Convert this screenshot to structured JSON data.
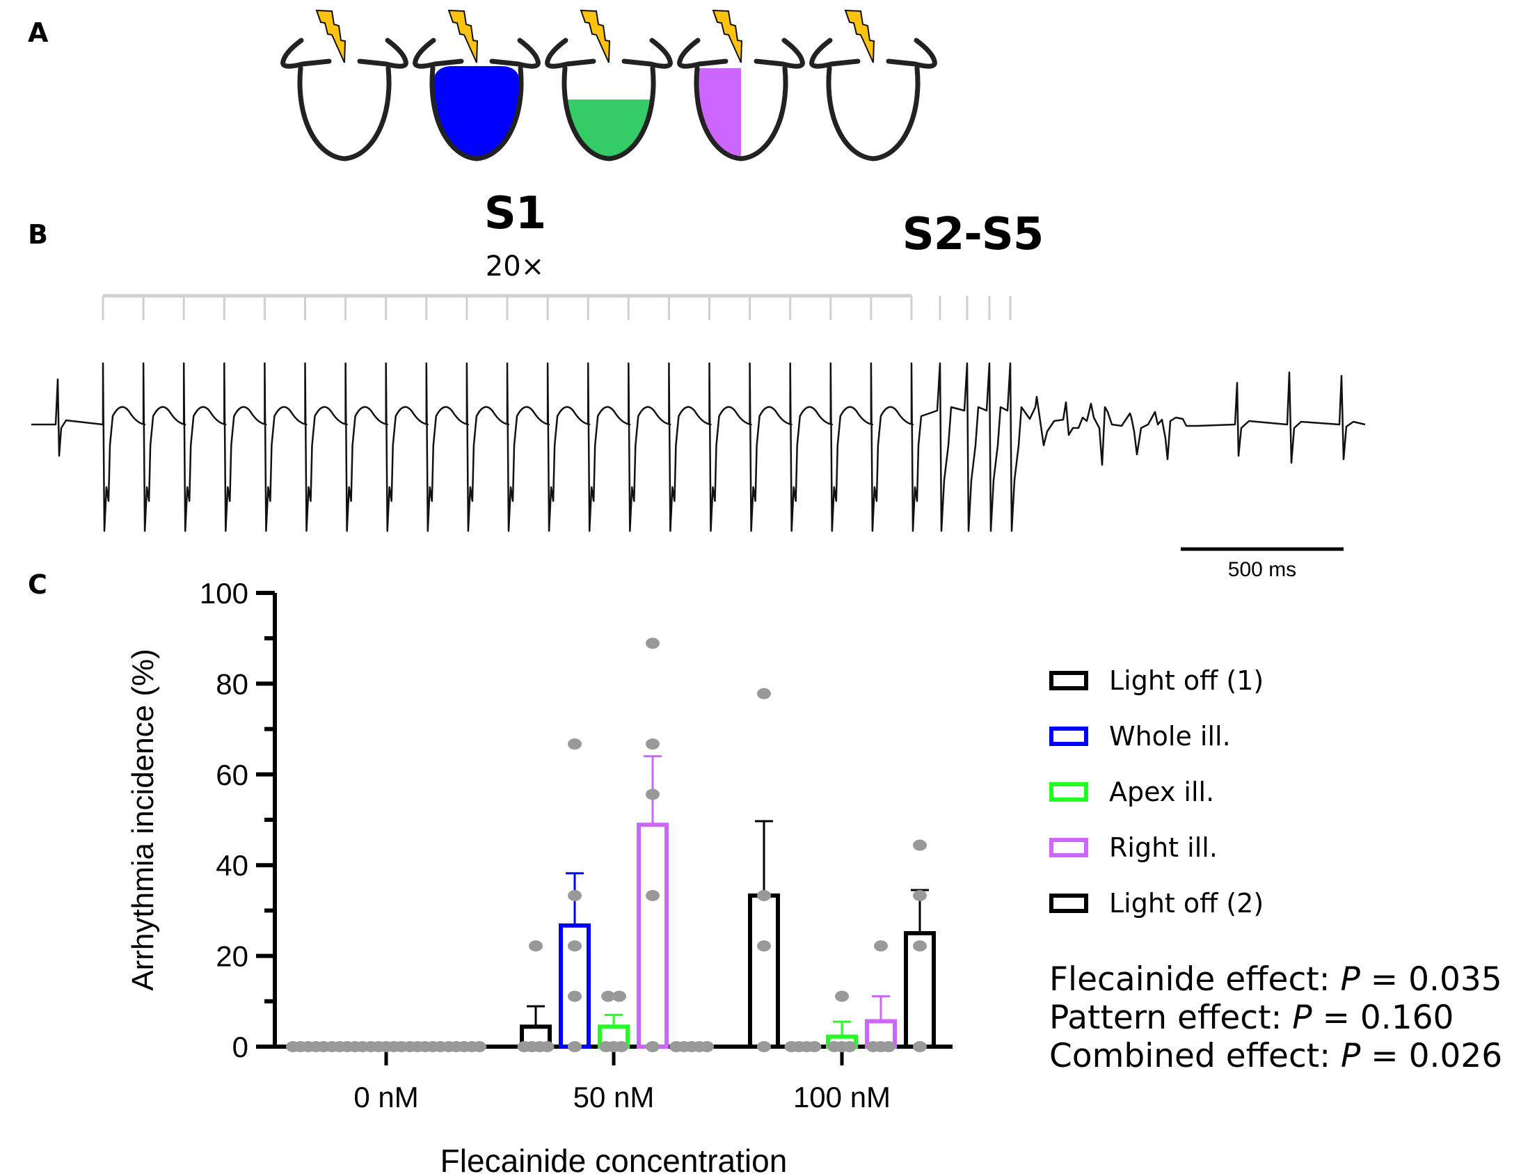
{
  "panels": {
    "a": {
      "label": "A"
    },
    "b": {
      "label": "B",
      "s1_label": "S1",
      "s1_count": "20×",
      "s2s5_label": "S2-S5",
      "scale_bar_label": "500 ms"
    },
    "c": {
      "label": "C"
    }
  },
  "schematic": {
    "hearts": [
      {
        "name": "light-off-1",
        "fill": "none",
        "color": "#000000"
      },
      {
        "name": "whole-illumination",
        "fill": "whole",
        "color": "#0000FF"
      },
      {
        "name": "apex-illumination",
        "fill": "apex",
        "color": "#34CC66"
      },
      {
        "name": "right-illumination",
        "fill": "right",
        "color": "#CC66FF"
      },
      {
        "name": "light-off-2",
        "fill": "none",
        "color": "#000000"
      }
    ],
    "lightning_color": "#FFC20E"
  },
  "stimulation": {
    "s1_pulses": 20,
    "extra_pulses": 4
  },
  "chart_data": {
    "type": "bar",
    "title": "",
    "xlabel": "Flecainide concentration",
    "ylabel": "Arrhythmia incidence (%)",
    "ylim": [
      0,
      100
    ],
    "yticks": [
      0,
      20,
      40,
      60,
      80,
      100
    ],
    "yticks_minor": [
      10,
      30,
      50,
      70,
      90
    ],
    "categories": [
      "0 nM",
      "50 nM",
      "100 nM"
    ],
    "legend_position": "right",
    "series": [
      {
        "name": "Light off (1)",
        "color": "#000000",
        "values": [
          0,
          4.4,
          33.3
        ],
        "sem_upper": [
          0,
          8.9,
          49.7
        ],
        "points": [
          [
            0,
            0,
            0,
            0,
            0
          ],
          [
            22.2,
            0,
            0,
            0,
            0
          ],
          [
            77.8,
            33.3,
            22.2,
            0
          ]
        ]
      },
      {
        "name": "Whole ill.",
        "color": "#0000FF",
        "values": [
          0,
          26.7,
          0
        ],
        "sem_upper": [
          0,
          38.2,
          0
        ],
        "points": [
          [
            0,
            0,
            0,
            0,
            0
          ],
          [
            66.7,
            33.3,
            22.2,
            11.1,
            0
          ],
          [
            0,
            0,
            0,
            0
          ]
        ]
      },
      {
        "name": "Apex ill.",
        "color": "#22FF22",
        "values": [
          0,
          4.4,
          2.2
        ],
        "sem_upper": [
          0,
          7.0,
          5.5
        ],
        "points": [
          [
            0,
            0,
            0,
            0,
            0
          ],
          [
            11.1,
            11.1,
            0,
            0,
            0
          ],
          [
            11.1,
            0,
            0,
            0
          ]
        ]
      },
      {
        "name": "Right ill.",
        "color": "#CC66FF",
        "values": [
          0,
          48.9,
          5.6
        ],
        "sem_upper": [
          0,
          64.0,
          11.1
        ],
        "points": [
          [
            0,
            0,
            0,
            0,
            0
          ],
          [
            88.9,
            66.7,
            55.6,
            33.3,
            0
          ],
          [
            22.2,
            0,
            0,
            0
          ]
        ]
      },
      {
        "name": "Light off (2)",
        "color": "#000000",
        "values": [
          0,
          0,
          25.0
        ],
        "sem_upper": [
          0,
          0,
          34.5
        ],
        "points": [
          [
            0,
            0,
            0,
            0,
            0
          ],
          [
            0,
            0,
            0,
            0,
            0
          ],
          [
            44.4,
            33.3,
            22.2,
            0
          ]
        ]
      }
    ],
    "point_color": "#999999",
    "annotations": [
      {
        "prefix": "Flecainide effect: ",
        "p": "P",
        "suffix": " = 0.035"
      },
      {
        "prefix": "Pattern effect: ",
        "p": "P",
        "suffix": " = 0.160"
      },
      {
        "prefix": "Combined effect: ",
        "p": "P",
        "suffix": " = 0.026"
      }
    ]
  }
}
